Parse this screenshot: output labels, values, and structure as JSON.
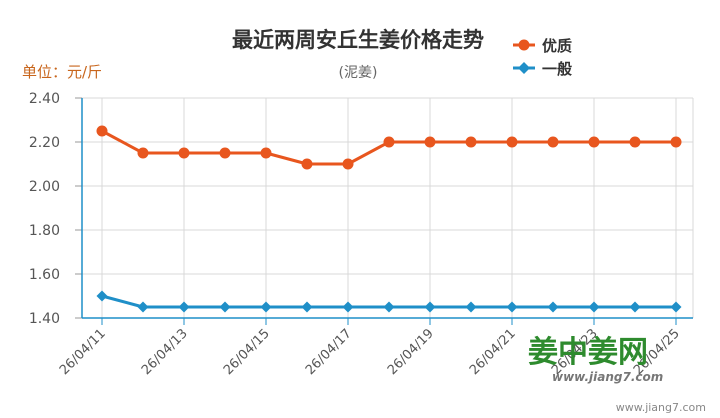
{
  "chart_data": {
    "type": "line",
    "title": "最近两周安丘生姜价格走势",
    "subtitle": "(泥姜)",
    "unit_label": "单位：元/斤",
    "xlabel": "",
    "ylabel": "",
    "ylim": [
      1.4,
      2.4
    ],
    "yticks": [
      "2.40",
      "2.20",
      "2.00",
      "1.80",
      "1.60",
      "1.40"
    ],
    "x_tick_labels": [
      "26/04/11",
      "26/04/13",
      "26/04/15",
      "26/04/17",
      "26/04/19",
      "26/04/21",
      "26/04/23",
      "26/04/25"
    ],
    "x": [
      "26/04/11",
      "26/04/12",
      "26/04/13",
      "26/04/14",
      "26/04/15",
      "26/04/16",
      "26/04/17",
      "26/04/18",
      "26/04/19",
      "26/04/20",
      "26/04/21",
      "26/04/22",
      "26/04/23",
      "26/04/24",
      "26/04/25"
    ],
    "series": [
      {
        "name": "优质",
        "color": "#e8561e",
        "marker": "circle",
        "values": [
          2.25,
          2.15,
          2.15,
          2.15,
          2.15,
          2.1,
          2.1,
          2.2,
          2.2,
          2.2,
          2.2,
          2.2,
          2.2,
          2.2,
          2.2
        ]
      },
      {
        "name": "一般",
        "color": "#1f8fc8",
        "marker": "diamond",
        "values": [
          1.5,
          1.45,
          1.45,
          1.45,
          1.45,
          1.45,
          1.45,
          1.45,
          1.45,
          1.45,
          1.45,
          1.45,
          1.45,
          1.45,
          1.45
        ]
      }
    ],
    "grid": true,
    "legend_position": "top-right"
  },
  "watermark": {
    "logo_text": "姜中姜网",
    "url_small": "www.jiang7.com",
    "url_footer": "www.jiang7.com"
  }
}
